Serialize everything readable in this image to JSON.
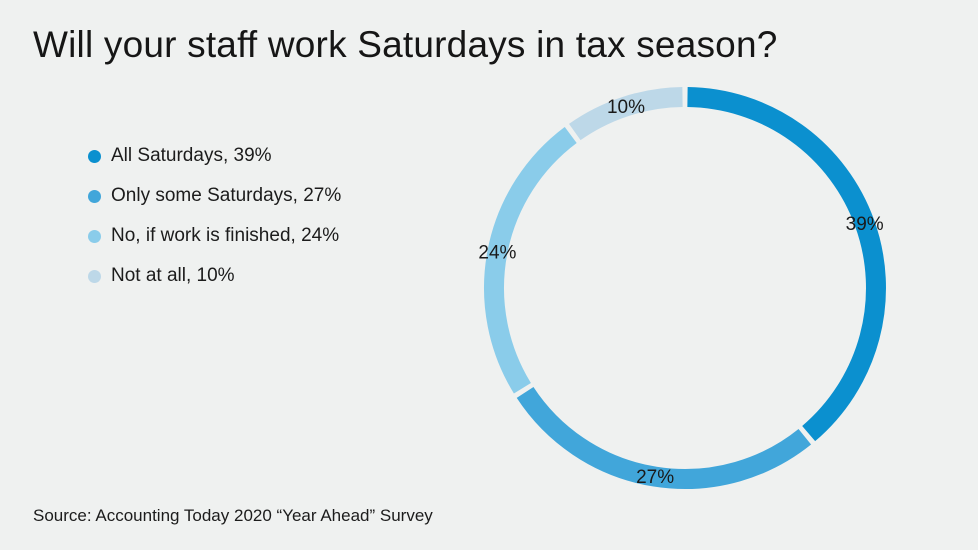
{
  "title": "Will your staff work Saturdays in tax season?",
  "source": "Source: Accounting Today 2020 “Year Ahead” Survey",
  "palette": {
    "background": "#eff1f0",
    "text": "#1a1a1a",
    "slice_colors": [
      "#0b90cf",
      "#41a6da",
      "#8accea",
      "#bdd8e8"
    ]
  },
  "legend": {
    "items": [
      {
        "label": "All Saturdays, 39%",
        "color": "#0b90cf"
      },
      {
        "label": "Only some Saturdays, 27%",
        "color": "#41a6da"
      },
      {
        "label": "No, if work is finished, 24%",
        "color": "#8accea"
      },
      {
        "label": "Not at all, 10%",
        "color": "#bdd8e8"
      }
    ]
  },
  "chart_data": {
    "type": "pie",
    "subtype": "donut",
    "title": "Will your staff work Saturdays in tax season?",
    "categories": [
      "All Saturdays",
      "Only some Saturdays",
      "No, if work is finished",
      "Not at all"
    ],
    "values": [
      39,
      27,
      24,
      10
    ],
    "unit": "percent",
    "slice_labels": [
      "39%",
      "27%",
      "24%",
      "10%"
    ],
    "colors": [
      "#0b90cf",
      "#41a6da",
      "#8accea",
      "#bdd8e8"
    ],
    "start_angle_deg": 0,
    "direction": "clockwise",
    "legend_position": "left",
    "source": "Source: Accounting Today 2020 “Year Ahead” Survey"
  }
}
